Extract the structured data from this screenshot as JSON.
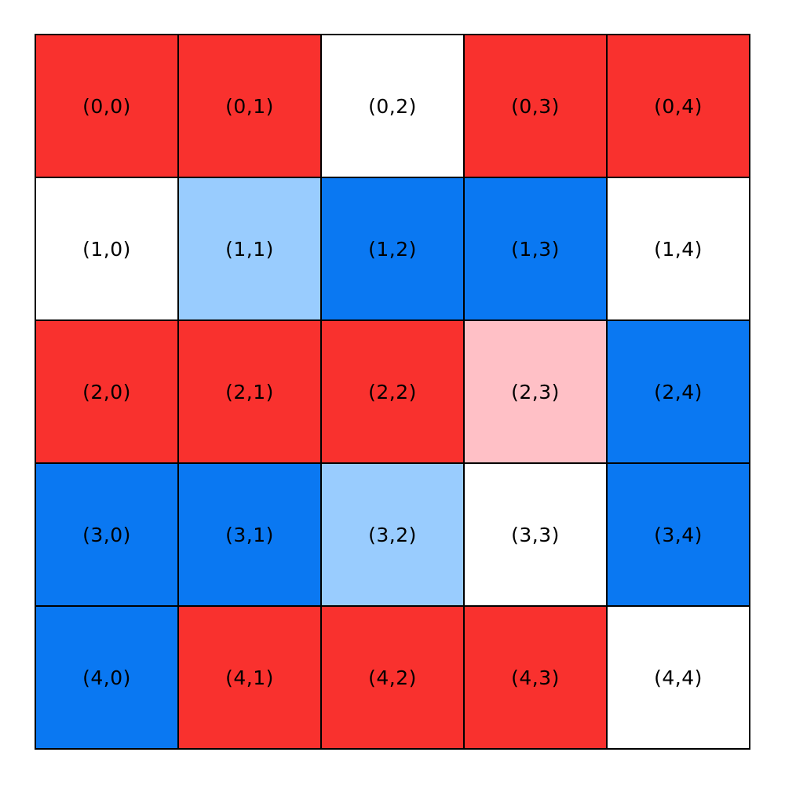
{
  "figure": {
    "background": "#ffffff",
    "grid_line_color": "#000000",
    "text_color": "#000000"
  },
  "chart_data": {
    "type": "heatmap",
    "rows": 5,
    "cols": 5,
    "legend": "none",
    "grid": "on",
    "palette": {
      "red": "#F9312E",
      "blue": "#0A78F2",
      "lightblue": "#99CCFE",
      "pink": "#FFC0C6",
      "white": "#FFFFFF"
    },
    "cells": [
      [
        {
          "label": "(0,0)",
          "color": "red"
        },
        {
          "label": "(0,1)",
          "color": "red"
        },
        {
          "label": "(0,2)",
          "color": "white"
        },
        {
          "label": "(0,3)",
          "color": "red"
        },
        {
          "label": "(0,4)",
          "color": "red"
        }
      ],
      [
        {
          "label": "(1,0)",
          "color": "white"
        },
        {
          "label": "(1,1)",
          "color": "lightblue"
        },
        {
          "label": "(1,2)",
          "color": "blue"
        },
        {
          "label": "(1,3)",
          "color": "blue"
        },
        {
          "label": "(1,4)",
          "color": "white"
        }
      ],
      [
        {
          "label": "(2,0)",
          "color": "red"
        },
        {
          "label": "(2,1)",
          "color": "red"
        },
        {
          "label": "(2,2)",
          "color": "red"
        },
        {
          "label": "(2,3)",
          "color": "pink"
        },
        {
          "label": "(2,4)",
          "color": "blue"
        }
      ],
      [
        {
          "label": "(3,0)",
          "color": "blue"
        },
        {
          "label": "(3,1)",
          "color": "blue"
        },
        {
          "label": "(3,2)",
          "color": "lightblue"
        },
        {
          "label": "(3,3)",
          "color": "white"
        },
        {
          "label": "(3,4)",
          "color": "blue"
        }
      ],
      [
        {
          "label": "(4,0)",
          "color": "blue"
        },
        {
          "label": "(4,1)",
          "color": "red"
        },
        {
          "label": "(4,2)",
          "color": "red"
        },
        {
          "label": "(4,3)",
          "color": "red"
        },
        {
          "label": "(4,4)",
          "color": "white"
        }
      ]
    ]
  }
}
